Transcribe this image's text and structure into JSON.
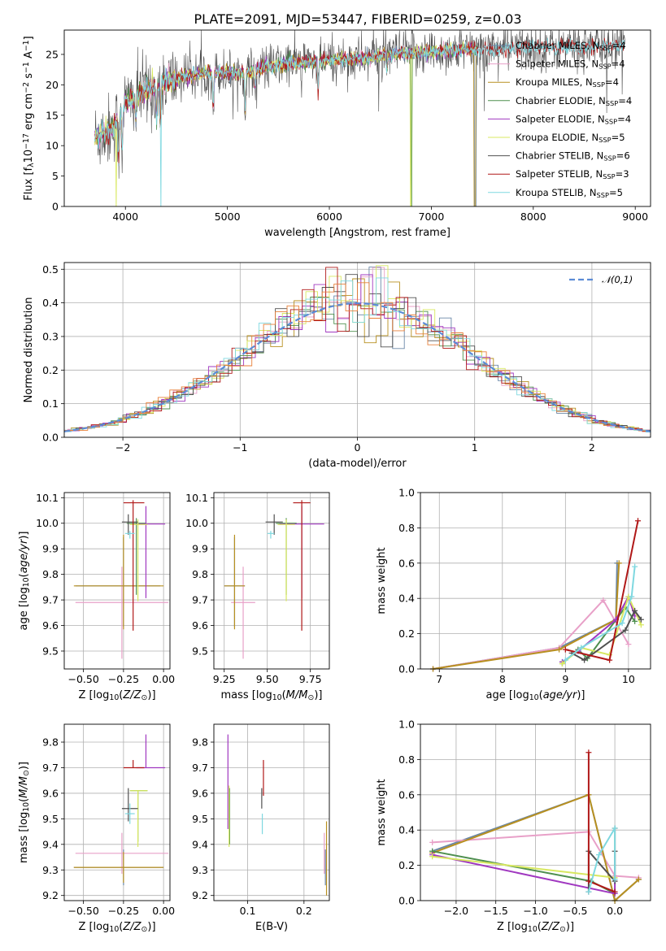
{
  "figure_title": "PLATE=2091, MJD=53447, FIBERID=0259, z=0.03",
  "colors": {
    "Chabrier MILES": "#6a87a8",
    "Salpeter MILES": "#e8a0c8",
    "Kroupa MILES": "#b89020",
    "Chabrier ELODIE": "#4f8f4f",
    "Salpeter ELODIE": "#a038c0",
    "Kroupa ELODIE": "#d8e860",
    "Chabrier STELIB": "#505050",
    "Salpeter STELIB": "#b01818",
    "Kroupa STELIB": "#7fd8e0",
    "dashed": "#5b8bd6",
    "orange": "#e8803a"
  },
  "chart_data": [
    {
      "type": "line",
      "panel": "spectrum",
      "xlabel": "wavelength [Angstrom, rest frame]",
      "ylabel": "Flux [f_λ10^-17 erg cm^-2 s^-1 A^-1]",
      "xlim": [
        3400,
        9150
      ],
      "ylim": [
        0,
        29
      ],
      "xticks": [
        4000,
        5000,
        6000,
        7000,
        8000,
        9000
      ],
      "yticks": [
        0,
        5,
        10,
        15,
        20,
        25
      ],
      "legend_position": "right",
      "legend": [
        {
          "name": "Chabrier MILES",
          "nssp": "4"
        },
        {
          "name": "Salpeter MILES",
          "nssp": "4"
        },
        {
          "name": "Kroupa MILES",
          "nssp": "4"
        },
        {
          "name": "Chabrier ELODIE",
          "nssp": "4"
        },
        {
          "name": "Salpeter ELODIE",
          "nssp": "4"
        },
        {
          "name": "Kroupa ELODIE",
          "nssp": "5"
        },
        {
          "name": "Chabrier STELIB",
          "nssp": "6"
        },
        {
          "name": "Salpeter STELIB",
          "nssp": "3"
        },
        {
          "name": "Kroupa STELIB",
          "nssp": "5"
        }
      ],
      "continuum": {
        "x": [
          3700,
          3800,
          3900,
          4000,
          4200,
          4400,
          4600,
          4800,
          5000,
          5200,
          5400,
          5600,
          5800,
          6000,
          6200,
          6400,
          6600,
          6800,
          7000,
          7200,
          7400,
          7600,
          7800,
          8000,
          8200,
          8400,
          8600,
          8800
        ],
        "y": [
          11.5,
          12,
          13.5,
          17,
          19,
          20.5,
          21.5,
          22,
          22,
          22,
          23,
          23.5,
          23.8,
          24,
          24.2,
          24.5,
          25,
          25.3,
          25.4,
          25.6,
          25.7,
          25.9,
          26,
          26.1,
          26.2,
          26.2,
          26.3,
          26.3
        ]
      }
    },
    {
      "type": "bar",
      "panel": "residual_histogram",
      "xlabel": "(data-model)/error",
      "ylabel": "Normed distribution",
      "xlim": [
        -2.5,
        2.5
      ],
      "ylim": [
        0,
        0.52
      ],
      "xticks": [
        -2,
        -1,
        0,
        1,
        2
      ],
      "yticks": [
        0.0,
        0.1,
        0.2,
        0.3,
        0.4,
        0.5
      ],
      "legend_position": "top-right",
      "reference_label": "𝒩(0,1)",
      "bin_width": 0.1
    },
    {
      "type": "scatter",
      "panel": "age_vs_Z",
      "xlabel": "Z [log10(Z/Z⊙)]",
      "ylabel": "age  [log10(age/yr)]",
      "xlim": [
        -0.62,
        0.04
      ],
      "ylim": [
        9.43,
        10.12
      ],
      "xticks": [
        -0.5,
        -0.25,
        0.0
      ],
      "xticklabels": [
        "−0.50",
        "−0.25",
        "0.00"
      ],
      "yticks": [
        9.5,
        9.6,
        9.7,
        9.8,
        9.9,
        10.0,
        10.1
      ],
      "points": [
        {
          "model": "Chabrier MILES",
          "x": -0.25,
          "xerr": [
            0.3,
            0.23
          ],
          "y": 9.755,
          "yerr": [
            0.16,
            0.19
          ]
        },
        {
          "model": "Salpeter MILES",
          "x": -0.26,
          "xerr": [
            0.29,
            0.29
          ],
          "y": 9.69,
          "yerr": [
            0.22,
            0.14
          ]
        },
        {
          "model": "Kroupa MILES",
          "x": -0.25,
          "xerr": [
            0.31,
            0.25
          ],
          "y": 9.755,
          "yerr": [
            0.17,
            0.2
          ]
        },
        {
          "model": "Chabrier ELODIE",
          "x": -0.17,
          "xerr": [
            0.06,
            0.06
          ],
          "y": 10.0,
          "yerr": [
            0.28,
            0.02
          ]
        },
        {
          "model": "Salpeter ELODIE",
          "x": -0.11,
          "xerr": [
            0.06,
            0.12
          ],
          "y": 9.997,
          "yerr": [
            0.29,
            0.07
          ]
        },
        {
          "model": "Kroupa ELODIE",
          "x": -0.16,
          "xerr": [
            0.05,
            0.06
          ],
          "y": 9.995,
          "yerr": [
            0.3,
            0.02
          ]
        },
        {
          "model": "Chabrier STELIB",
          "x": -0.22,
          "xerr": [
            0.04,
            0.06
          ],
          "y": 10.005,
          "yerr": [
            0.05,
            0.03
          ]
        },
        {
          "model": "Salpeter STELIB",
          "x": -0.19,
          "xerr": [
            0.06,
            0.07
          ],
          "y": 10.08,
          "yerr": [
            0.5,
            0.01
          ]
        },
        {
          "model": "Kroupa STELIB",
          "x": -0.21,
          "xerr": [
            0.03,
            0.03
          ],
          "y": 9.96,
          "yerr": [
            0.02,
            0.01
          ]
        }
      ]
    },
    {
      "type": "scatter",
      "panel": "age_vs_mass",
      "xlabel": "mass [log10(M/M⊙)]",
      "ylabel": "",
      "xlim": [
        9.19,
        9.86
      ],
      "ylim": [
        9.43,
        10.12
      ],
      "xticks": [
        9.25,
        9.5,
        9.75
      ],
      "yticks": [
        9.5,
        9.6,
        9.7,
        9.8,
        9.9,
        10.0,
        10.1
      ],
      "points": [
        {
          "model": "Chabrier MILES",
          "x": 9.31,
          "xerr": [
            0.06,
            0.06
          ],
          "y": 9.755,
          "yerr": [
            0.16,
            0.19
          ]
        },
        {
          "model": "Salpeter MILES",
          "x": 9.36,
          "xerr": [
            0.07,
            0.07
          ],
          "y": 9.69,
          "yerr": [
            0.22,
            0.14
          ]
        },
        {
          "model": "Kroupa MILES",
          "x": 9.31,
          "xerr": [
            0.06,
            0.06
          ],
          "y": 9.755,
          "yerr": [
            0.17,
            0.2
          ]
        },
        {
          "model": "Chabrier ELODIE",
          "x": 9.61,
          "xerr": [
            0.06,
            0.06
          ],
          "y": 10.0,
          "yerr": [
            0.28,
            0.02
          ]
        },
        {
          "model": "Salpeter ELODIE",
          "x": 9.7,
          "xerr": [
            0.13,
            0.13
          ],
          "y": 9.997,
          "yerr": [
            0.29,
            0.07
          ]
        },
        {
          "model": "Kroupa ELODIE",
          "x": 9.61,
          "xerr": [
            0.05,
            0.05
          ],
          "y": 9.995,
          "yerr": [
            0.3,
            0.02
          ]
        },
        {
          "model": "Chabrier STELIB",
          "x": 9.54,
          "xerr": [
            0.05,
            0.05
          ],
          "y": 10.005,
          "yerr": [
            0.05,
            0.03
          ]
        },
        {
          "model": "Salpeter STELIB",
          "x": 9.7,
          "xerr": [
            0.05,
            0.05
          ],
          "y": 10.08,
          "yerr": [
            0.5,
            0.01
          ]
        },
        {
          "model": "Kroupa STELIB",
          "x": 9.52,
          "xerr": [
            0.02,
            0.02
          ],
          "y": 9.96,
          "yerr": [
            0.02,
            0.01
          ]
        }
      ]
    },
    {
      "type": "line",
      "panel": "weight_vs_age",
      "xlabel": "age  [log10(age/yr)]",
      "ylabel": "mass weight",
      "xlim": [
        6.7,
        10.35
      ],
      "ylim": [
        0,
        1.0
      ],
      "xticks": [
        7,
        8,
        9,
        10
      ],
      "yticks": [
        0.0,
        0.2,
        0.4,
        0.6,
        0.8,
        1.0
      ],
      "series": [
        {
          "model": "Chabrier MILES",
          "x": [
            6.9,
            8.9,
            9.8,
            9.82
          ],
          "y": [
            0.0,
            0.12,
            0.28,
            0.6
          ]
        },
        {
          "model": "Salpeter MILES",
          "x": [
            6.9,
            8.9,
            9.6,
            10.0
          ],
          "y": [
            0.0,
            0.12,
            0.39,
            0.14
          ]
        },
        {
          "model": "Kroupa MILES",
          "x": [
            6.9,
            8.9,
            9.8,
            9.85
          ],
          "y": [
            0.0,
            0.11,
            0.28,
            0.6
          ]
        },
        {
          "model": "Chabrier ELODIE",
          "x": [
            8.95,
            9.2,
            9.35,
            9.95,
            10.1
          ],
          "y": [
            0.03,
            0.11,
            0.06,
            0.35,
            0.27
          ]
        },
        {
          "model": "Salpeter ELODIE",
          "x": [
            8.95,
            9.2,
            9.8,
            10.0,
            10.1
          ],
          "y": [
            0.04,
            0.1,
            0.28,
            0.41,
            0.3
          ]
        },
        {
          "model": "Kroupa ELODIE",
          "x": [
            8.95,
            9.25,
            9.7,
            10.0,
            10.2
          ],
          "y": [
            0.03,
            0.12,
            0.08,
            0.41,
            0.25
          ]
        },
        {
          "model": "Chabrier STELIB",
          "x": [
            9.1,
            9.3,
            9.95,
            10.1,
            10.2
          ],
          "y": [
            0.09,
            0.05,
            0.22,
            0.33,
            0.28
          ]
        },
        {
          "model": "Salpeter STELIB",
          "x": [
            9.0,
            9.7,
            10.15
          ],
          "y": [
            0.11,
            0.05,
            0.84
          ]
        },
        {
          "model": "Kroupa STELIB",
          "x": [
            9.0,
            9.25,
            9.9,
            10.05,
            10.1
          ],
          "y": [
            0.05,
            0.12,
            0.26,
            0.41,
            0.58
          ]
        }
      ]
    },
    {
      "type": "scatter",
      "panel": "mass_vs_Z",
      "xlabel": "Z [log10(Z/Z⊙)]",
      "ylabel": "mass [log10(M/M⊙)]",
      "xlim": [
        -0.62,
        0.04
      ],
      "ylim": [
        9.18,
        9.87
      ],
      "xticks": [
        -0.5,
        -0.25,
        0.0
      ],
      "xticklabels": [
        "−0.50",
        "−0.25",
        "0.00"
      ],
      "yticks": [
        9.2,
        9.3,
        9.4,
        9.5,
        9.6,
        9.7,
        9.8
      ],
      "points": [
        {
          "model": "Chabrier MILES",
          "x": -0.25,
          "xerr": [
            0.31,
            0.25
          ],
          "y": 9.31,
          "yerr": [
            0.07,
            0.07
          ]
        },
        {
          "model": "Salpeter MILES",
          "x": -0.26,
          "xerr": [
            0.29,
            0.29
          ],
          "y": 9.365,
          "yerr": [
            0.08,
            0.08
          ]
        },
        {
          "model": "Kroupa MILES",
          "x": -0.25,
          "xerr": [
            0.31,
            0.25
          ],
          "y": 9.31,
          "yerr": [
            0.06,
            0.06
          ]
        },
        {
          "model": "Chabrier ELODIE",
          "x": -0.16,
          "xerr": [
            0.05,
            0.06
          ],
          "y": 9.61,
          "yerr": [
            0.2,
            0.0
          ]
        },
        {
          "model": "Salpeter ELODIE",
          "x": -0.11,
          "xerr": [
            0.06,
            0.12
          ],
          "y": 9.7,
          "yerr": [
            0.0,
            0.13
          ]
        },
        {
          "model": "Kroupa ELODIE",
          "x": -0.16,
          "xerr": [
            0.05,
            0.06
          ],
          "y": 9.61,
          "yerr": [
            0.22,
            0.0
          ]
        },
        {
          "model": "Chabrier STELIB",
          "x": -0.22,
          "xerr": [
            0.04,
            0.06
          ],
          "y": 9.54,
          "yerr": [
            0.05,
            0.08
          ]
        },
        {
          "model": "Salpeter STELIB",
          "x": -0.19,
          "xerr": [
            0.06,
            0.07
          ],
          "y": 9.7,
          "yerr": [
            0.0,
            0.03
          ]
        },
        {
          "model": "Kroupa STELIB",
          "x": -0.21,
          "xerr": [
            0.03,
            0.03
          ],
          "y": 9.52,
          "yerr": [
            0.04,
            0.04
          ]
        }
      ]
    },
    {
      "type": "scatter",
      "panel": "mass_vs_ebv",
      "xlabel": "E(B-V)",
      "ylabel": "",
      "xlim": [
        0.04,
        0.245
      ],
      "ylim": [
        9.18,
        9.87
      ],
      "xticks": [
        0.1,
        0.2
      ],
      "yticks": [
        9.2,
        9.3,
        9.4,
        9.5,
        9.6,
        9.7,
        9.8
      ],
      "points": [
        {
          "model": "Chabrier MILES",
          "x": 0.238,
          "y": 9.31,
          "yerr": [
            0.07,
            0.07
          ]
        },
        {
          "model": "Salpeter MILES",
          "x": 0.236,
          "y": 9.365,
          "yerr": [
            0.08,
            0.08
          ]
        },
        {
          "model": "Kroupa MILES",
          "x": 0.24,
          "y": 9.31,
          "yerr": [
            0.11,
            0.18
          ]
        },
        {
          "model": "Chabrier ELODIE",
          "x": 0.068,
          "y": 9.52,
          "yerr": [
            0.12,
            0.1
          ]
        },
        {
          "model": "Salpeter ELODIE",
          "x": 0.065,
          "y": 9.66,
          "yerr": [
            0.2,
            0.17
          ]
        },
        {
          "model": "Kroupa ELODIE",
          "x": 0.067,
          "y": 9.5,
          "yerr": [
            0.11,
            0.13
          ]
        },
        {
          "model": "Chabrier STELIB",
          "x": 0.125,
          "y": 9.59,
          "yerr": [
            0.05,
            0.03
          ]
        },
        {
          "model": "Salpeter STELIB",
          "x": 0.128,
          "y": 9.65,
          "yerr": [
            0.06,
            0.08
          ]
        },
        {
          "model": "Kroupa STELIB",
          "x": 0.126,
          "y": 9.48,
          "yerr": [
            0.04,
            0.04
          ]
        }
      ]
    },
    {
      "type": "line",
      "panel": "weight_vs_Z",
      "xlabel": "Z [log10(Z/Z⊙)]",
      "ylabel": "mass weight",
      "xlim": [
        -2.45,
        0.45
      ],
      "ylim": [
        0,
        1.0
      ],
      "xticks": [
        -2.0,
        -1.5,
        -1.0,
        -0.5,
        0.0
      ],
      "xticklabels": [
        "−2.0",
        "−1.5",
        "−1.0",
        "−0.5",
        "0.0"
      ],
      "yticks": [
        0.0,
        0.2,
        0.4,
        0.6,
        0.8,
        1.0
      ],
      "series": [
        {
          "model": "Chabrier MILES",
          "x": [
            -2.3,
            -0.33,
            0.0,
            0.3
          ],
          "y": [
            0.28,
            0.6,
            0.0,
            0.12
          ]
        },
        {
          "model": "Salpeter MILES",
          "x": [
            -2.3,
            -0.33,
            0.0,
            0.3
          ],
          "y": [
            0.33,
            0.39,
            0.14,
            0.13
          ]
        },
        {
          "model": "Kroupa MILES",
          "x": [
            -2.3,
            -0.33,
            0.0,
            0.3
          ],
          "y": [
            0.27,
            0.6,
            0.0,
            0.12
          ]
        },
        {
          "model": "Chabrier ELODIE",
          "x": [
            -2.3,
            -0.3,
            0.0
          ],
          "y": [
            0.28,
            0.11,
            0.04
          ]
        },
        {
          "model": "Salpeter ELODIE",
          "x": [
            -2.3,
            0.0,
            0.0
          ],
          "y": [
            0.26,
            0.04,
            0.41
          ]
        },
        {
          "model": "Kroupa ELODIE",
          "x": [
            -2.3,
            0.0,
            0.0
          ],
          "y": [
            0.25,
            0.13,
            0.41
          ]
        },
        {
          "model": "Chabrier STELIB",
          "x": [
            -0.33,
            -0.33,
            0.0,
            0.0
          ],
          "y": [
            0.05,
            0.28,
            0.11,
            0.28
          ]
        },
        {
          "model": "Salpeter STELIB",
          "x": [
            -0.33,
            -0.33,
            0.0
          ],
          "y": [
            0.84,
            0.11,
            0.05
          ]
        },
        {
          "model": "Kroupa STELIB",
          "x": [
            -0.33,
            -0.2,
            0.0,
            0.0
          ],
          "y": [
            0.05,
            0.26,
            0.41,
            0.12
          ]
        }
      ]
    }
  ]
}
